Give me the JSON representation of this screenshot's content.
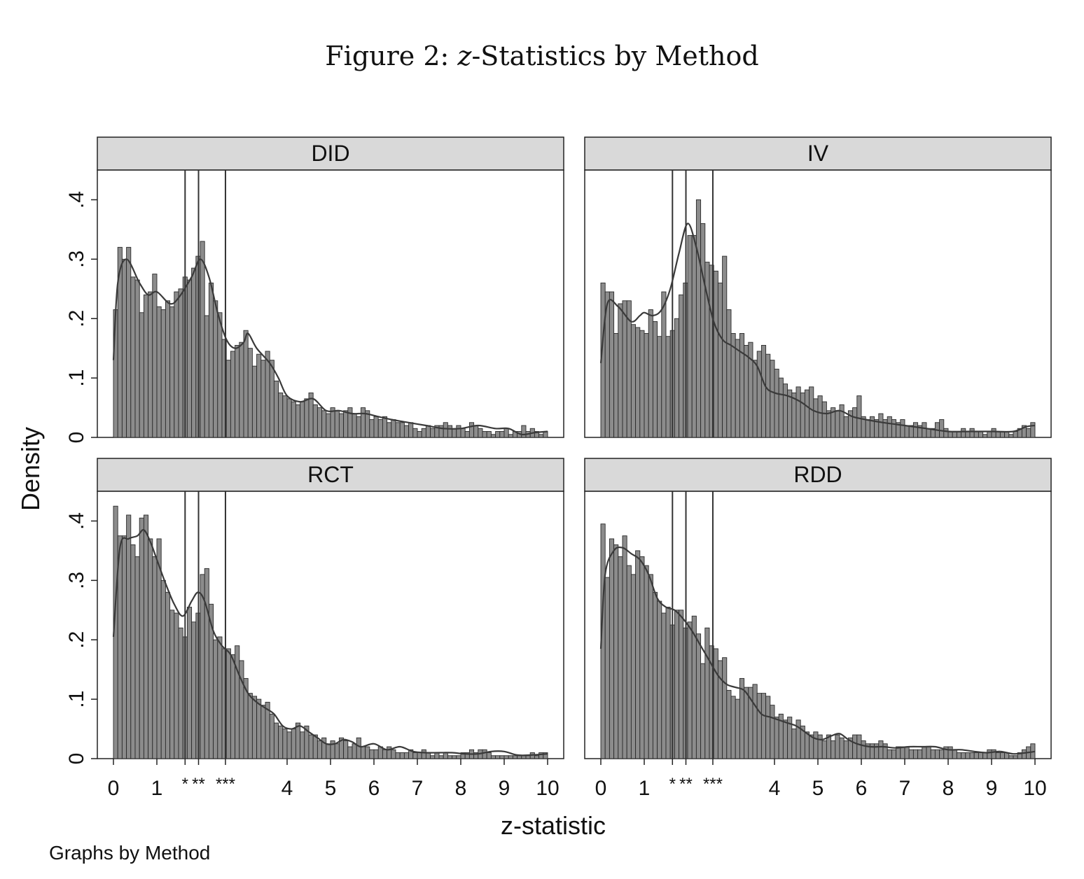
{
  "figure": {
    "label": "Figure 2:",
    "var": "z",
    "rest": "-Statistics by Method"
  },
  "footer_note": "Graphs by Method",
  "chart_data": {
    "type": "bar",
    "xlabel": "z-statistic",
    "ylabel": "Density",
    "xlim": [
      0,
      10
    ],
    "ylim": [
      0,
      0.45
    ],
    "x_ticks": [
      {
        "value": 0,
        "label": "0"
      },
      {
        "value": 1,
        "label": "1"
      },
      {
        "value": 1.65,
        "label": "*"
      },
      {
        "value": 1.96,
        "label": "**"
      },
      {
        "value": 2.58,
        "label": "***"
      },
      {
        "value": 4,
        "label": "4"
      },
      {
        "value": 5,
        "label": "5"
      },
      {
        "value": 6,
        "label": "6"
      },
      {
        "value": 7,
        "label": "7"
      },
      {
        "value": 8,
        "label": "8"
      },
      {
        "value": 9,
        "label": "9"
      },
      {
        "value": 10,
        "label": "10"
      }
    ],
    "y_ticks": [
      {
        "value": 0,
        "label": "0"
      },
      {
        "value": 0.1,
        "label": ".1"
      },
      {
        "value": 0.2,
        "label": ".2"
      },
      {
        "value": 0.3,
        "label": ".3"
      },
      {
        "value": 0.4,
        "label": ".4"
      }
    ],
    "thresholds": [
      1.65,
      1.96,
      2.58
    ],
    "bin_width": 0.1,
    "grid": false,
    "colors": {
      "bar_fill": "#8c8c8c",
      "bar_stroke": "#2a2a2a",
      "line": "#3a3a3a",
      "strip": "#d9d9d9"
    },
    "panels": [
      {
        "name": "DID",
        "density_knots": [
          [
            0,
            0.13
          ],
          [
            0.1,
            0.26
          ],
          [
            0.3,
            0.3
          ],
          [
            0.6,
            0.26
          ],
          [
            0.8,
            0.24
          ],
          [
            1.0,
            0.245
          ],
          [
            1.3,
            0.225
          ],
          [
            1.5,
            0.235
          ],
          [
            1.8,
            0.27
          ],
          [
            2.0,
            0.3
          ],
          [
            2.2,
            0.27
          ],
          [
            2.4,
            0.21
          ],
          [
            2.6,
            0.165
          ],
          [
            2.8,
            0.15
          ],
          [
            3.0,
            0.16
          ],
          [
            3.1,
            0.175
          ],
          [
            3.3,
            0.15
          ],
          [
            3.6,
            0.125
          ],
          [
            3.8,
            0.1
          ],
          [
            4.0,
            0.07
          ],
          [
            4.3,
            0.06
          ],
          [
            4.6,
            0.065
          ],
          [
            4.9,
            0.045
          ],
          [
            5.2,
            0.045
          ],
          [
            5.5,
            0.04
          ],
          [
            5.8,
            0.04
          ],
          [
            6.1,
            0.035
          ],
          [
            6.4,
            0.03
          ],
          [
            6.8,
            0.025
          ],
          [
            7.2,
            0.02
          ],
          [
            7.6,
            0.015
          ],
          [
            8.0,
            0.015
          ],
          [
            8.4,
            0.02
          ],
          [
            8.8,
            0.015
          ],
          [
            9.1,
            0.015
          ],
          [
            9.4,
            0.005
          ],
          [
            9.7,
            0.008
          ],
          [
            10.0,
            0.01
          ]
        ],
        "hist_values": [
          0.215,
          0.32,
          0.3,
          0.32,
          0.27,
          0.265,
          0.21,
          0.24,
          0.245,
          0.275,
          0.22,
          0.215,
          0.23,
          0.22,
          0.245,
          0.25,
          0.27,
          0.265,
          0.285,
          0.305,
          0.33,
          0.205,
          0.26,
          0.23,
          0.21,
          0.165,
          0.13,
          0.145,
          0.155,
          0.16,
          0.18,
          0.15,
          0.12,
          0.14,
          0.13,
          0.145,
          0.13,
          0.095,
          0.075,
          0.07,
          0.065,
          0.06,
          0.055,
          0.06,
          0.065,
          0.075,
          0.055,
          0.05,
          0.045,
          0.04,
          0.05,
          0.045,
          0.04,
          0.045,
          0.05,
          0.04,
          0.035,
          0.05,
          0.045,
          0.03,
          0.035,
          0.03,
          0.035,
          0.025,
          0.03,
          0.025,
          0.025,
          0.02,
          0.025,
          0.015,
          0.01,
          0.015,
          0.02,
          0.015,
          0.02,
          0.02,
          0.025,
          0.02,
          0.015,
          0.02,
          0.015,
          0.01,
          0.025,
          0.02,
          0.015,
          0.01,
          0.01,
          0.005,
          0.01,
          0.01,
          0.015,
          0.005,
          0.01,
          0.01,
          0.02,
          0.01,
          0.015,
          0.01,
          0.005,
          0.01
        ]
      },
      {
        "name": "IV",
        "density_knots": [
          [
            0,
            0.125
          ],
          [
            0.15,
            0.225
          ],
          [
            0.4,
            0.22
          ],
          [
            0.7,
            0.195
          ],
          [
            0.9,
            0.205
          ],
          [
            1.0,
            0.21
          ],
          [
            1.2,
            0.205
          ],
          [
            1.4,
            0.215
          ],
          [
            1.6,
            0.25
          ],
          [
            1.8,
            0.31
          ],
          [
            2.0,
            0.36
          ],
          [
            2.2,
            0.32
          ],
          [
            2.4,
            0.255
          ],
          [
            2.6,
            0.195
          ],
          [
            2.8,
            0.165
          ],
          [
            3.0,
            0.155
          ],
          [
            3.2,
            0.145
          ],
          [
            3.4,
            0.135
          ],
          [
            3.6,
            0.12
          ],
          [
            3.8,
            0.085
          ],
          [
            4.0,
            0.075
          ],
          [
            4.3,
            0.07
          ],
          [
            4.6,
            0.06
          ],
          [
            4.9,
            0.045
          ],
          [
            5.2,
            0.04
          ],
          [
            5.5,
            0.045
          ],
          [
            5.8,
            0.035
          ],
          [
            6.1,
            0.03
          ],
          [
            6.5,
            0.025
          ],
          [
            7.0,
            0.02
          ],
          [
            7.5,
            0.015
          ],
          [
            8.0,
            0.01
          ],
          [
            8.5,
            0.01
          ],
          [
            9.0,
            0.01
          ],
          [
            9.5,
            0.01
          ],
          [
            9.8,
            0.018
          ],
          [
            10.0,
            0.02
          ]
        ],
        "hist_values": [
          0.26,
          0.245,
          0.245,
          0.175,
          0.225,
          0.23,
          0.23,
          0.19,
          0.185,
          0.18,
          0.175,
          0.215,
          0.195,
          0.17,
          0.245,
          0.17,
          0.18,
          0.2,
          0.24,
          0.26,
          0.34,
          0.34,
          0.4,
          0.36,
          0.295,
          0.29,
          0.28,
          0.26,
          0.305,
          0.215,
          0.175,
          0.165,
          0.175,
          0.155,
          0.16,
          0.13,
          0.145,
          0.155,
          0.14,
          0.13,
          0.115,
          0.1,
          0.09,
          0.08,
          0.075,
          0.085,
          0.075,
          0.08,
          0.085,
          0.065,
          0.07,
          0.06,
          0.045,
          0.05,
          0.045,
          0.055,
          0.035,
          0.045,
          0.05,
          0.07,
          0.035,
          0.03,
          0.035,
          0.03,
          0.04,
          0.03,
          0.035,
          0.03,
          0.025,
          0.03,
          0.02,
          0.02,
          0.025,
          0.02,
          0.025,
          0.015,
          0.015,
          0.025,
          0.03,
          0.015,
          0.01,
          0.01,
          0.01,
          0.015,
          0.01,
          0.015,
          0.01,
          0.01,
          0.005,
          0.01,
          0.015,
          0.01,
          0.01,
          0.01,
          0.005,
          0.01,
          0.015,
          0.02,
          0.015,
          0.025
        ]
      },
      {
        "name": "RCT",
        "density_knots": [
          [
            0,
            0.205
          ],
          [
            0.15,
            0.355
          ],
          [
            0.35,
            0.37
          ],
          [
            0.55,
            0.375
          ],
          [
            0.7,
            0.385
          ],
          [
            0.85,
            0.365
          ],
          [
            1.0,
            0.335
          ],
          [
            1.2,
            0.295
          ],
          [
            1.4,
            0.26
          ],
          [
            1.6,
            0.24
          ],
          [
            1.8,
            0.265
          ],
          [
            1.95,
            0.28
          ],
          [
            2.1,
            0.265
          ],
          [
            2.3,
            0.215
          ],
          [
            2.5,
            0.19
          ],
          [
            2.7,
            0.175
          ],
          [
            2.9,
            0.14
          ],
          [
            3.1,
            0.11
          ],
          [
            3.3,
            0.095
          ],
          [
            3.5,
            0.085
          ],
          [
            3.7,
            0.075
          ],
          [
            3.9,
            0.055
          ],
          [
            4.1,
            0.05
          ],
          [
            4.3,
            0.055
          ],
          [
            4.5,
            0.045
          ],
          [
            4.7,
            0.035
          ],
          [
            4.9,
            0.025
          ],
          [
            5.1,
            0.025
          ],
          [
            5.3,
            0.032
          ],
          [
            5.5,
            0.028
          ],
          [
            5.7,
            0.02
          ],
          [
            6.0,
            0.025
          ],
          [
            6.3,
            0.015
          ],
          [
            6.6,
            0.02
          ],
          [
            6.9,
            0.012
          ],
          [
            7.2,
            0.01
          ],
          [
            7.5,
            0.01
          ],
          [
            7.8,
            0.01
          ],
          [
            8.1,
            0.008
          ],
          [
            8.4,
            0.008
          ],
          [
            8.7,
            0.012
          ],
          [
            9.0,
            0.012
          ],
          [
            9.3,
            0.006
          ],
          [
            9.6,
            0.006
          ],
          [
            10.0,
            0.008
          ]
        ],
        "hist_values": [
          0.425,
          0.375,
          0.375,
          0.41,
          0.36,
          0.34,
          0.405,
          0.41,
          0.37,
          0.34,
          0.37,
          0.3,
          0.28,
          0.25,
          0.245,
          0.22,
          0.205,
          0.255,
          0.23,
          0.245,
          0.31,
          0.32,
          0.26,
          0.2,
          0.205,
          0.185,
          0.185,
          0.175,
          0.19,
          0.165,
          0.135,
          0.11,
          0.105,
          0.1,
          0.09,
          0.095,
          0.075,
          0.06,
          0.055,
          0.05,
          0.045,
          0.05,
          0.06,
          0.045,
          0.055,
          0.04,
          0.04,
          0.03,
          0.035,
          0.025,
          0.03,
          0.025,
          0.035,
          0.03,
          0.02,
          0.025,
          0.035,
          0.02,
          0.02,
          0.015,
          0.015,
          0.02,
          0.015,
          0.02,
          0.015,
          0.01,
          0.01,
          0.01,
          0.015,
          0.01,
          0.01,
          0.015,
          0.01,
          0.005,
          0.01,
          0.005,
          0.01,
          0.005,
          0.005,
          0.005,
          0.01,
          0.01,
          0.015,
          0.01,
          0.015,
          0.015,
          0.01,
          0.005,
          0.005,
          0.005,
          0.005,
          0.005,
          0.005,
          0.005,
          0.005,
          0.005,
          0.01,
          0.005,
          0.01,
          0.01
        ]
      },
      {
        "name": "RDD",
        "density_knots": [
          [
            0,
            0.185
          ],
          [
            0.1,
            0.31
          ],
          [
            0.3,
            0.35
          ],
          [
            0.5,
            0.355
          ],
          [
            0.7,
            0.345
          ],
          [
            0.9,
            0.335
          ],
          [
            1.1,
            0.31
          ],
          [
            1.3,
            0.27
          ],
          [
            1.5,
            0.255
          ],
          [
            1.7,
            0.25
          ],
          [
            1.9,
            0.235
          ],
          [
            2.1,
            0.215
          ],
          [
            2.3,
            0.19
          ],
          [
            2.5,
            0.165
          ],
          [
            2.7,
            0.14
          ],
          [
            2.9,
            0.125
          ],
          [
            3.1,
            0.12
          ],
          [
            3.3,
            0.115
          ],
          [
            3.5,
            0.095
          ],
          [
            3.7,
            0.075
          ],
          [
            3.9,
            0.07
          ],
          [
            4.1,
            0.065
          ],
          [
            4.3,
            0.06
          ],
          [
            4.5,
            0.055
          ],
          [
            4.7,
            0.045
          ],
          [
            4.9,
            0.035
          ],
          [
            5.1,
            0.032
          ],
          [
            5.3,
            0.038
          ],
          [
            5.5,
            0.042
          ],
          [
            5.7,
            0.032
          ],
          [
            5.9,
            0.025
          ],
          [
            6.2,
            0.02
          ],
          [
            6.5,
            0.02
          ],
          [
            6.8,
            0.018
          ],
          [
            7.1,
            0.02
          ],
          [
            7.4,
            0.02
          ],
          [
            7.7,
            0.02
          ],
          [
            8.0,
            0.015
          ],
          [
            8.3,
            0.015
          ],
          [
            8.6,
            0.012
          ],
          [
            8.9,
            0.01
          ],
          [
            9.2,
            0.012
          ],
          [
            9.5,
            0.008
          ],
          [
            9.8,
            0.01
          ],
          [
            10.0,
            0.012
          ]
        ],
        "hist_values": [
          0.395,
          0.305,
          0.37,
          0.36,
          0.34,
          0.375,
          0.325,
          0.31,
          0.35,
          0.34,
          0.325,
          0.31,
          0.28,
          0.265,
          0.245,
          0.255,
          0.225,
          0.25,
          0.25,
          0.22,
          0.23,
          0.24,
          0.21,
          0.16,
          0.22,
          0.19,
          0.185,
          0.165,
          0.17,
          0.115,
          0.105,
          0.1,
          0.135,
          0.12,
          0.12,
          0.125,
          0.11,
          0.11,
          0.105,
          0.09,
          0.07,
          0.075,
          0.065,
          0.07,
          0.05,
          0.065,
          0.055,
          0.045,
          0.04,
          0.045,
          0.04,
          0.03,
          0.04,
          0.03,
          0.04,
          0.035,
          0.03,
          0.035,
          0.04,
          0.04,
          0.03,
          0.025,
          0.025,
          0.025,
          0.03,
          0.025,
          0.015,
          0.015,
          0.02,
          0.02,
          0.02,
          0.015,
          0.015,
          0.015,
          0.02,
          0.02,
          0.015,
          0.015,
          0.015,
          0.02,
          0.02,
          0.015,
          0.01,
          0.01,
          0.01,
          0.01,
          0.01,
          0.01,
          0.01,
          0.015,
          0.015,
          0.01,
          0.01,
          0.01,
          0.005,
          0.005,
          0.01,
          0.015,
          0.02,
          0.025
        ]
      }
    ]
  }
}
